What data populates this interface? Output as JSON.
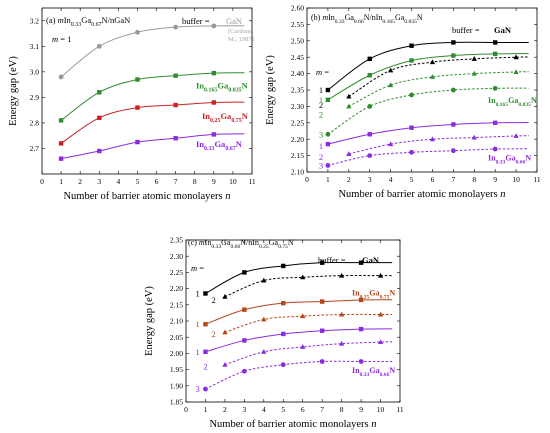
{
  "chart_data": [
    {
      "type": "line",
      "panel_label": "(a)",
      "title_prefix": "m",
      "title_main": "In",
      "title_sub1": "0.33",
      "title_mid": "Ga",
      "title_sub2": "0.67",
      "title_tail": "N/nGaN",
      "m_note": "m = 1",
      "buffer_label": "buffer =",
      "buffer_value": "GaN",
      "buffer_ref": "[Cardona, M., 1987]",
      "xlabel": "Number of barrier atomic monolayers  n",
      "ylabel": "Energy gap (eV)",
      "xlim": [
        0,
        11
      ],
      "ylim": [
        2.6,
        3.25
      ],
      "xticks": [
        0,
        1,
        2,
        3,
        4,
        5,
        6,
        7,
        8,
        9,
        10,
        11
      ],
      "yticks": [
        2.7,
        2.8,
        2.9,
        3.0,
        3.1,
        3.2
      ],
      "ytick_labels": [
        "2.7",
        "2.8",
        "2.9",
        "3.0",
        "3.1",
        "3.2"
      ],
      "series": [
        {
          "color": "#999999",
          "marker": "circle",
          "x": [
            1,
            3,
            5,
            7,
            9
          ],
          "y": [
            2.98,
            3.1,
            3.155,
            3.175,
            3.18
          ],
          "curve": "solid"
        },
        {
          "name": "In0.165Ga0.835N",
          "color": "#2e8b2e",
          "marker": "square",
          "x": [
            1,
            3,
            5,
            7,
            9
          ],
          "y": [
            2.81,
            2.92,
            2.97,
            2.985,
            2.995
          ],
          "curve": "solid"
        },
        {
          "name": "In0.25Ga0.75N",
          "color": "#cc2222",
          "marker": "square",
          "x": [
            1,
            3,
            5,
            7,
            9
          ],
          "y": [
            2.72,
            2.82,
            2.86,
            2.87,
            2.88
          ],
          "curve": "solid"
        },
        {
          "name": "In0.33Ga0.67N",
          "color": "#8a2be2",
          "marker": "square",
          "x": [
            1,
            3,
            5,
            7,
            9
          ],
          "y": [
            2.66,
            2.69,
            2.725,
            2.74,
            2.755
          ],
          "curve": "solid"
        }
      ]
    },
    {
      "type": "line",
      "panel_label": "(b)",
      "title_prefix": "m",
      "title_main": "In",
      "title_sub1": "0.33",
      "title_mid": "Ga",
      "title_sub2": "0.66",
      "title_tail": "N/nIn",
      "title_sub3": "0.165",
      "title_mid2": "Ga",
      "title_sub4": "0.835",
      "title_tail2": "N",
      "buffer_label": "buffer =",
      "buffer_value": "GaN",
      "m_note": "m =",
      "xlabel": "Number of barrier atomic monolayers  n",
      "ylabel": "Energy gap (eV)",
      "xlim": [
        0,
        11
      ],
      "ylim": [
        2.1,
        2.6
      ],
      "xticks": [
        0,
        1,
        2,
        3,
        4,
        5,
        6,
        7,
        8,
        9,
        10,
        11
      ],
      "yticks": [
        2.1,
        2.15,
        2.2,
        2.25,
        2.3,
        2.35,
        2.4,
        2.45,
        2.5,
        2.55,
        2.6
      ],
      "ytick_labels": [
        "2.10",
        "2.15",
        "2.20",
        "2.25",
        "2.30",
        "2.35",
        "2.40",
        "2.45",
        "2.50",
        "2.55",
        "2.60"
      ],
      "series_labels": [
        {
          "text": "In0.165Ga0.835N",
          "color": "#2e8b2e"
        },
        {
          "text": "In0.33Ga0.66N",
          "color": "#8a2be2"
        }
      ],
      "m_labels": [
        {
          "text": "1",
          "color": "#000000",
          "y": 2.35
        },
        {
          "text": "2",
          "color": "#000000",
          "y": 2.305
        },
        {
          "text": "1",
          "color": "#2e8b2e",
          "y": 2.32
        },
        {
          "text": "2",
          "color": "#2e8b2e",
          "y": 2.275
        },
        {
          "text": "3",
          "color": "#2e8b2e",
          "y": 2.215
        },
        {
          "text": "1",
          "color": "#8a2be2",
          "y": 2.18
        },
        {
          "text": "2",
          "color": "#8a2be2",
          "y": 2.145
        },
        {
          "text": "3",
          "color": "#8a2be2",
          "y": 2.12
        }
      ],
      "series": [
        {
          "color": "#000000",
          "marker": "square",
          "dash": false,
          "x": [
            1,
            3,
            5,
            7,
            9
          ],
          "y": [
            2.35,
            2.445,
            2.485,
            2.495,
            2.495
          ]
        },
        {
          "color": "#000000",
          "marker": "triangle",
          "dash": true,
          "x": [
            2,
            4,
            6,
            8,
            10
          ],
          "y": [
            2.33,
            2.41,
            2.435,
            2.445,
            2.45
          ]
        },
        {
          "color": "#2e8b2e",
          "marker": "square",
          "dash": false,
          "x": [
            1,
            3,
            5,
            7,
            9
          ],
          "y": [
            2.32,
            2.395,
            2.44,
            2.455,
            2.46
          ]
        },
        {
          "color": "#2e8b2e",
          "marker": "triangle",
          "dash": true,
          "x": [
            2,
            4,
            6,
            8,
            10
          ],
          "y": [
            2.3,
            2.365,
            2.39,
            2.4,
            2.405
          ]
        },
        {
          "color": "#2e8b2e",
          "marker": "circle",
          "dash": true,
          "x": [
            1,
            3,
            5,
            7,
            9
          ],
          "y": [
            2.215,
            2.3,
            2.335,
            2.35,
            2.355
          ]
        },
        {
          "color": "#8a2be2",
          "marker": "square",
          "dash": false,
          "x": [
            1,
            3,
            5,
            7,
            9
          ],
          "y": [
            2.185,
            2.215,
            2.235,
            2.245,
            2.25
          ]
        },
        {
          "color": "#8a2be2",
          "marker": "triangle",
          "dash": true,
          "x": [
            2,
            4,
            6,
            8,
            10
          ],
          "y": [
            2.155,
            2.185,
            2.2,
            2.205,
            2.21
          ]
        },
        {
          "color": "#8a2be2",
          "marker": "circle",
          "dash": true,
          "x": [
            1,
            3,
            5,
            7,
            9
          ],
          "y": [
            2.12,
            2.15,
            2.16,
            2.165,
            2.17
          ]
        }
      ]
    },
    {
      "type": "line",
      "panel_label": "(c)",
      "title_prefix": "m",
      "title_main": "In",
      "title_sub1": "0.33",
      "title_mid": "Ga",
      "title_sub2": "0.66",
      "title_tail": "N/nIn",
      "title_sub3": "0.25",
      "title_mid2": "Ga",
      "title_sub4": "0.75",
      "title_tail2": "N",
      "buffer_label": "buffer =",
      "buffer_value": "GaN",
      "m_note": "m =",
      "xlabel": "Number of barrier atomic monolayers  n",
      "ylabel": "Energy gap (eV)",
      "xlim": [
        0,
        11
      ],
      "ylim": [
        1.85,
        2.35
      ],
      "xticks": [
        0,
        1,
        2,
        3,
        4,
        5,
        6,
        7,
        8,
        9,
        10,
        11
      ],
      "yticks": [
        1.85,
        1.9,
        1.95,
        2.0,
        2.05,
        2.1,
        2.15,
        2.2,
        2.25,
        2.3,
        2.35
      ],
      "ytick_labels": [
        "1.85",
        "1.90",
        "1.95",
        "2.00",
        "2.05",
        "2.10",
        "2.15",
        "2.20",
        "2.25",
        "2.30",
        "2.35"
      ],
      "series_labels": [
        {
          "text": "In0.25Ga0.75N",
          "color": "#b5451b"
        },
        {
          "text": "In0.33Ga0.66N",
          "color": "#8a2be2"
        }
      ],
      "m_labels": [
        {
          "text": "1",
          "color": "#000000",
          "y": 2.185
        },
        {
          "text": "2",
          "color": "#000000",
          "y": 2.165
        },
        {
          "text": "1",
          "color": "#b5451b",
          "y": 2.09
        },
        {
          "text": "2",
          "color": "#b5451b",
          "y": 2.06
        },
        {
          "text": "1",
          "color": "#8a2be2",
          "y": 2.005
        },
        {
          "text": "2",
          "color": "#8a2be2",
          "y": 1.96
        },
        {
          "text": "3",
          "color": "#8a2be2",
          "y": 1.89
        }
      ],
      "series": [
        {
          "color": "#000000",
          "marker": "square",
          "dash": false,
          "x": [
            1,
            3,
            5,
            7,
            9
          ],
          "y": [
            2.185,
            2.25,
            2.27,
            2.28,
            2.28
          ]
        },
        {
          "color": "#000000",
          "marker": "triangle",
          "dash": true,
          "x": [
            2,
            4,
            6,
            8,
            10
          ],
          "y": [
            2.175,
            2.225,
            2.235,
            2.24,
            2.24
          ]
        },
        {
          "color": "#b5451b",
          "marker": "square",
          "dash": false,
          "x": [
            1,
            3,
            5,
            7,
            9
          ],
          "y": [
            2.09,
            2.135,
            2.155,
            2.16,
            2.165
          ]
        },
        {
          "color": "#b5451b",
          "marker": "triangle",
          "dash": true,
          "x": [
            2,
            4,
            6,
            8,
            10
          ],
          "y": [
            2.065,
            2.105,
            2.115,
            2.12,
            2.12
          ]
        },
        {
          "color": "#8a2be2",
          "marker": "square",
          "dash": false,
          "x": [
            1,
            3,
            5,
            7,
            9
          ],
          "y": [
            2.005,
            2.04,
            2.06,
            2.07,
            2.075
          ]
        },
        {
          "color": "#8a2be2",
          "marker": "triangle",
          "dash": true,
          "x": [
            2,
            4,
            6,
            8,
            10
          ],
          "y": [
            1.965,
            2.005,
            2.02,
            2.03,
            2.035
          ]
        },
        {
          "color": "#8a2be2",
          "marker": "circle",
          "dash": true,
          "x": [
            1,
            3,
            5,
            7,
            9
          ],
          "y": [
            1.89,
            1.945,
            1.965,
            1.975,
            1.975
          ]
        }
      ]
    }
  ]
}
